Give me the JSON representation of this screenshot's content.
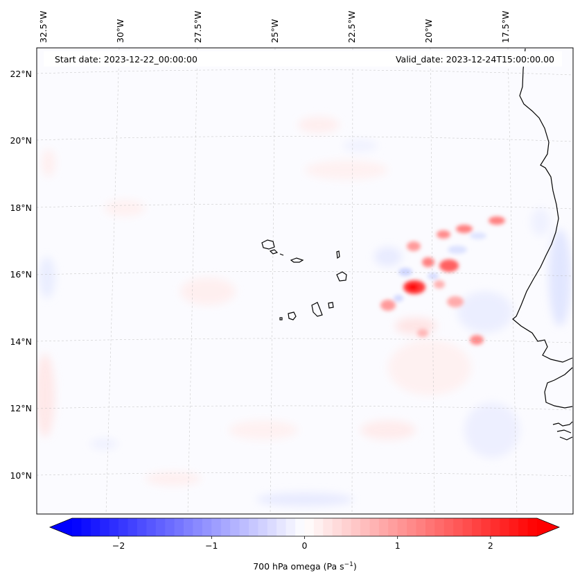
{
  "map": {
    "start_date_label": "Start date: 2023-12-22_00:00:00",
    "valid_date_label": "Valid_date: 2023-12-24T15:00:00.00",
    "lon_labels": [
      "32.5°W",
      "30°W",
      "27.5°W",
      "25°W",
      "22.5°W",
      "20°W",
      "17.5°W"
    ],
    "lat_labels": [
      "22°N",
      "20°N",
      "18°N",
      "16°N",
      "14°N",
      "12°N",
      "10°N"
    ],
    "gridlines": true,
    "coastline_color": "#000000"
  },
  "colorbar": {
    "label_main": "700 hPa omega (Pa s",
    "label_sup": "−1",
    "label_end": ")",
    "ticks": [
      "−2",
      "−1",
      "0",
      "1",
      "2"
    ],
    "tick_values": [
      -2,
      -1,
      0,
      1,
      2
    ],
    "range": [
      -2.5,
      2.5
    ],
    "extend": "both",
    "colormap": "bwr",
    "color_min": "#0000ff",
    "color_mid": "#ffffff",
    "color_max": "#ff0000"
  }
}
